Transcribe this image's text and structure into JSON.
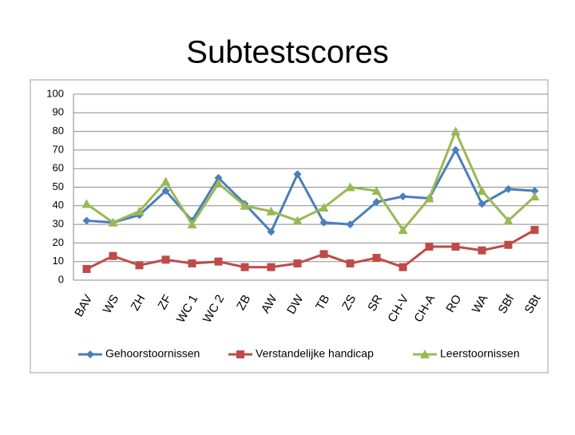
{
  "chart_data": {
    "type": "line",
    "title": "Subtestscores",
    "categories": [
      "BAV",
      "WS",
      "ZH",
      "ZF",
      "WC 1",
      "WC 2",
      "ZB",
      "AW",
      "DW",
      "TB",
      "ZS",
      "SR",
      "CH-V",
      "CH-A",
      "RO",
      "WA",
      "SBf",
      "SBt"
    ],
    "series": [
      {
        "name": "Gehoorstoornissen",
        "color": "#4a7ebb",
        "marker": "diamond",
        "values": [
          32,
          31,
          35,
          48,
          32,
          55,
          41,
          26,
          57,
          31,
          30,
          42,
          45,
          44,
          70,
          41,
          49,
          48
        ]
      },
      {
        "name": "Verstandelijke handicap",
        "color": "#be4b48",
        "marker": "square",
        "values": [
          6,
          13,
          8,
          11,
          9,
          10,
          7,
          7,
          9,
          14,
          9,
          12,
          7,
          18,
          18,
          16,
          19,
          27
        ]
      },
      {
        "name": "Leerstoornissen",
        "color": "#98b954",
        "marker": "triangle",
        "values": [
          41,
          31,
          37,
          53,
          30,
          52,
          40,
          37,
          32,
          39,
          50,
          48,
          27,
          44,
          80,
          48,
          32,
          45
        ]
      }
    ],
    "ylim": [
      0,
      100
    ],
    "yticks": [
      0,
      10,
      20,
      30,
      40,
      50,
      60,
      70,
      80,
      90,
      100
    ],
    "grid": true,
    "legend": "bottom"
  }
}
